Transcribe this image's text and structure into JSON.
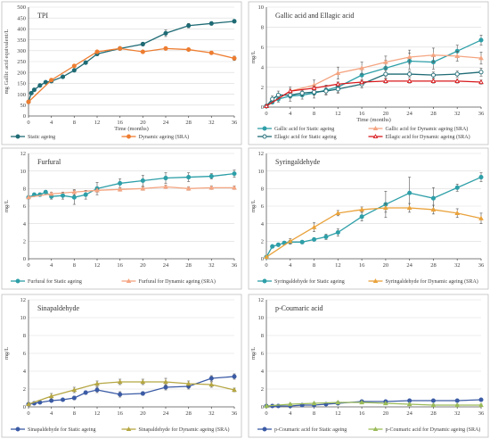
{
  "chart_data": [
    {
      "type": "line",
      "title": "TPI",
      "xlabel": "Time (months)",
      "ylabel": "mg Gallic acid equivalent/L",
      "xlim": [
        0,
        36
      ],
      "ylim": [
        0,
        500
      ],
      "xticks": [
        0,
        4,
        8,
        12,
        16,
        20,
        24,
        28,
        32,
        36
      ],
      "yticks": [
        0,
        50,
        100,
        150,
        200,
        250,
        300,
        350,
        400,
        450,
        500
      ],
      "grid": true,
      "legend_position": "bottom",
      "series": [
        {
          "name": "Static ageing",
          "color": "#1f6b75",
          "marker": "circle",
          "filled": true,
          "x": [
            0,
            0.5,
            1,
            2,
            3,
            4,
            6,
            8,
            10,
            12,
            16,
            20,
            24,
            28,
            32,
            36
          ],
          "y": [
            65,
            105,
            120,
            140,
            155,
            160,
            180,
            210,
            245,
            285,
            310,
            330,
            380,
            415,
            425,
            435
          ],
          "err": [
            0,
            0,
            0,
            0,
            0,
            0,
            0,
            6,
            5,
            8,
            6,
            8,
            15,
            10,
            8,
            8
          ]
        },
        {
          "name": "Dynamic ageing (SRA)",
          "color": "#ed7d31",
          "marker": "circle",
          "filled": true,
          "x": [
            0,
            4,
            8,
            12,
            16,
            20,
            24,
            28,
            32,
            36
          ],
          "y": [
            65,
            165,
            230,
            295,
            310,
            295,
            310,
            305,
            290,
            265
          ],
          "err": [
            0,
            5,
            6,
            6,
            6,
            6,
            6,
            6,
            6,
            10
          ]
        }
      ]
    },
    {
      "type": "line",
      "title": "Gallic acid and Ellagic acid",
      "xlabel": "Time (months)",
      "ylabel": "mg/L",
      "xlim": [
        0,
        36
      ],
      "ylim": [
        0,
        10
      ],
      "xticks": [
        0,
        4,
        8,
        12,
        16,
        20,
        24,
        28,
        32,
        36
      ],
      "yticks": [
        0,
        2,
        4,
        6,
        8,
        10
      ],
      "grid": true,
      "legend_position": "bottom",
      "series": [
        {
          "name": "Gallic acid for Static ageing",
          "color": "#2e9fa8",
          "marker": "circle",
          "filled": true,
          "x": [
            0,
            1,
            2,
            4,
            6,
            8,
            10,
            12,
            16,
            20,
            24,
            28,
            32,
            36
          ],
          "y": [
            0.1,
            0.5,
            0.8,
            1.1,
            1.2,
            1.4,
            1.7,
            2.0,
            3.2,
            3.9,
            4.6,
            4.5,
            5.6,
            6.7
          ],
          "err": [
            0,
            0.2,
            0.3,
            0.5,
            0.4,
            0.5,
            0.5,
            0.5,
            0.6,
            0.8,
            0.8,
            0.7,
            0.6,
            0.5
          ]
        },
        {
          "name": "Gallic acid for Dynamic ageing (SRA)",
          "color": "#f4a582",
          "marker": "triangle",
          "filled": true,
          "x": [
            0,
            4,
            8,
            12,
            16,
            20,
            24,
            28,
            32,
            36
          ],
          "y": [
            0.1,
            1.6,
            2.2,
            3.4,
            3.9,
            4.5,
            5.0,
            5.2,
            5.1,
            4.9
          ],
          "err": [
            0,
            0.4,
            0.5,
            0.6,
            0.6,
            0.6,
            0.7,
            0.7,
            0.5,
            0.6
          ]
        },
        {
          "name": "Ellagic acid for Static ageing",
          "color": "#1f6b75",
          "marker": "circle",
          "filled": false,
          "x": [
            0,
            1,
            2,
            4,
            6,
            8,
            10,
            12,
            16,
            20,
            24,
            28,
            32,
            36
          ],
          "y": [
            0.1,
            0.8,
            1.2,
            1.2,
            1.4,
            1.5,
            1.6,
            1.8,
            2.3,
            3.3,
            3.3,
            3.2,
            3.3,
            3.5
          ],
          "err": [
            0,
            0.3,
            0.4,
            0.3,
            0.3,
            0.3,
            0.3,
            0.4,
            0.4,
            0.4,
            0.3,
            0.3,
            0.3,
            0.4
          ]
        },
        {
          "name": "Ellagic acid for Dynamic ageing (SRA)",
          "color": "#d7191c",
          "marker": "triangle",
          "filled": false,
          "x": [
            0,
            4,
            8,
            12,
            16,
            20,
            24,
            28,
            32,
            36
          ],
          "y": [
            0.1,
            1.6,
            1.9,
            2.3,
            2.5,
            2.6,
            2.6,
            2.6,
            2.6,
            2.5
          ],
          "err": [
            0,
            0.2,
            0.2,
            0.2,
            0.2,
            0.2,
            0.2,
            0.2,
            0.2,
            0.2
          ]
        }
      ]
    },
    {
      "type": "line",
      "title": "Furfural",
      "xlabel": "",
      "ylabel": "mg/L",
      "xlim": [
        0,
        36
      ],
      "ylim": [
        0,
        12
      ],
      "xticks": [
        0,
        4,
        8,
        12,
        16,
        20,
        24,
        28,
        32,
        36
      ],
      "yticks": [
        0,
        2,
        4,
        6,
        8,
        10,
        12
      ],
      "grid": true,
      "legend_position": "bottom",
      "series": [
        {
          "name": "Furfural for Static ageing",
          "color": "#2e9fa8",
          "marker": "circle",
          "filled": true,
          "x": [
            0,
            1,
            2,
            3,
            4,
            6,
            8,
            10,
            12,
            16,
            20,
            24,
            28,
            32,
            36
          ],
          "y": [
            7.0,
            7.3,
            7.3,
            7.6,
            7.1,
            7.2,
            7.0,
            7.3,
            8.0,
            8.6,
            8.9,
            9.2,
            9.3,
            9.4,
            9.7
          ],
          "err": [
            0,
            0.2,
            0.2,
            0.2,
            0.3,
            0.4,
            0.8,
            0.5,
            0.7,
            0.5,
            0.6,
            0.6,
            0.5,
            0.3,
            0.4
          ]
        },
        {
          "name": "Furfural for Dynamic ageing (SRA)",
          "color": "#f4a582",
          "marker": "triangle",
          "filled": true,
          "x": [
            0,
            4,
            8,
            12,
            16,
            20,
            24,
            28,
            32,
            36
          ],
          "y": [
            7.0,
            7.4,
            7.6,
            7.8,
            7.9,
            8.0,
            8.2,
            8.0,
            8.1,
            8.1
          ],
          "err": [
            0,
            0.2,
            0.3,
            0.2,
            0.2,
            0.2,
            0.2,
            0.2,
            0.2,
            0.2
          ]
        }
      ]
    },
    {
      "type": "line",
      "title": "Syringaldehyde",
      "xlabel": "",
      "ylabel": "mg/L",
      "xlim": [
        0,
        36
      ],
      "ylim": [
        0,
        12
      ],
      "xticks": [
        0,
        4,
        8,
        12,
        16,
        20,
        24,
        28,
        32,
        36
      ],
      "yticks": [
        0,
        2,
        4,
        6,
        8,
        10,
        12
      ],
      "grid": true,
      "legend_position": "bottom",
      "series": [
        {
          "name": "Syringaldehyde for Static ageing",
          "color": "#2e9fa8",
          "marker": "circle",
          "filled": true,
          "x": [
            0,
            1,
            2,
            3,
            4,
            6,
            8,
            10,
            12,
            16,
            20,
            24,
            28,
            32,
            36
          ],
          "y": [
            0.2,
            1.4,
            1.6,
            1.8,
            1.9,
            1.9,
            2.2,
            2.5,
            3.0,
            4.8,
            6.2,
            7.5,
            6.9,
            8.1,
            9.3
          ],
          "err": [
            0,
            0.1,
            0.2,
            0.2,
            0.2,
            0.2,
            0.2,
            0.3,
            0.4,
            0.5,
            1.5,
            1.8,
            1.2,
            0.4,
            0.5
          ]
        },
        {
          "name": "Syringaldehyde for Dynamic ageing (SRA)",
          "color": "#e9a23b",
          "marker": "triangle",
          "filled": true,
          "x": [
            0,
            4,
            8,
            12,
            16,
            20,
            24,
            28,
            32,
            36
          ],
          "y": [
            0.2,
            2.0,
            3.6,
            5.2,
            5.6,
            5.8,
            5.8,
            5.6,
            5.2,
            4.6
          ],
          "err": [
            0,
            0.3,
            0.5,
            0.3,
            0.3,
            0.5,
            0.5,
            0.5,
            0.5,
            0.6
          ]
        }
      ]
    },
    {
      "type": "line",
      "title": "Sinapaldehyde",
      "xlabel": "",
      "ylabel": "mg/L",
      "xlim": [
        0,
        36
      ],
      "ylim": [
        0,
        12
      ],
      "xticks": [
        0,
        4,
        8,
        12,
        16,
        20,
        24,
        28,
        32,
        36
      ],
      "yticks": [
        0,
        2,
        4,
        6,
        8,
        10,
        12
      ],
      "grid": true,
      "legend_position": "bottom",
      "series": [
        {
          "name": "Sinapaldehyde for Static ageing",
          "color": "#3b5ba5",
          "marker": "circle",
          "filled": true,
          "x": [
            0,
            1,
            2,
            4,
            6,
            8,
            10,
            12,
            16,
            20,
            24,
            28,
            32,
            36
          ],
          "y": [
            0.3,
            0.4,
            0.5,
            0.7,
            0.8,
            1.0,
            1.6,
            1.9,
            1.4,
            1.5,
            2.2,
            2.3,
            3.2,
            3.4
          ],
          "err": [
            0,
            0.1,
            0.1,
            0.1,
            0.1,
            0.2,
            0.2,
            0.3,
            0.3,
            0.2,
            0.3,
            0.3,
            0.3,
            0.3
          ]
        },
        {
          "name": "Sinapaldehyde for Dynamic ageing (SRA)",
          "color": "#b5a642",
          "marker": "triangle",
          "filled": true,
          "x": [
            0,
            4,
            8,
            12,
            16,
            20,
            24,
            28,
            32,
            36
          ],
          "y": [
            0.3,
            1.2,
            1.9,
            2.6,
            2.8,
            2.8,
            2.8,
            2.6,
            2.5,
            1.9
          ],
          "err": [
            0,
            0.3,
            0.3,
            0.3,
            0.3,
            0.3,
            0.4,
            0.3,
            0.3,
            0.2
          ]
        }
      ]
    },
    {
      "type": "line",
      "title": "p-Coumaric acid",
      "xlabel": "",
      "ylabel": "mg/L",
      "xlim": [
        0,
        36
      ],
      "ylim": [
        0,
        12
      ],
      "xticks": [
        0,
        4,
        8,
        12,
        16,
        20,
        24,
        28,
        32,
        36
      ],
      "yticks": [
        0,
        2,
        4,
        6,
        8,
        10,
        12
      ],
      "grid": true,
      "legend_position": "bottom",
      "series": [
        {
          "name": "p-Coumaric acid for Static ageing",
          "color": "#3b5ba5",
          "marker": "circle",
          "filled": true,
          "x": [
            0,
            1,
            2,
            4,
            6,
            8,
            10,
            12,
            16,
            20,
            24,
            28,
            32,
            36
          ],
          "y": [
            0.1,
            0.1,
            0.1,
            0.1,
            0.2,
            0.2,
            0.3,
            0.4,
            0.6,
            0.6,
            0.7,
            0.7,
            0.7,
            0.8
          ],
          "err": [
            0,
            0,
            0,
            0,
            0,
            0,
            0.1,
            0.1,
            0.1,
            0.1,
            0.1,
            0.1,
            0.1,
            0.1
          ]
        },
        {
          "name": "p-Coumaric acid for Dynamic ageing (SRA)",
          "color": "#9bbb59",
          "marker": "triangle",
          "filled": true,
          "x": [
            0,
            4,
            8,
            12,
            16,
            20,
            24,
            28,
            32,
            36
          ],
          "y": [
            0.1,
            0.3,
            0.4,
            0.5,
            0.5,
            0.4,
            0.3,
            0.2,
            0.2,
            0.2
          ],
          "err": [
            0,
            0.1,
            0.1,
            0.1,
            0.1,
            0.1,
            0.1,
            0.1,
            0.1,
            0.1
          ]
        }
      ]
    }
  ]
}
